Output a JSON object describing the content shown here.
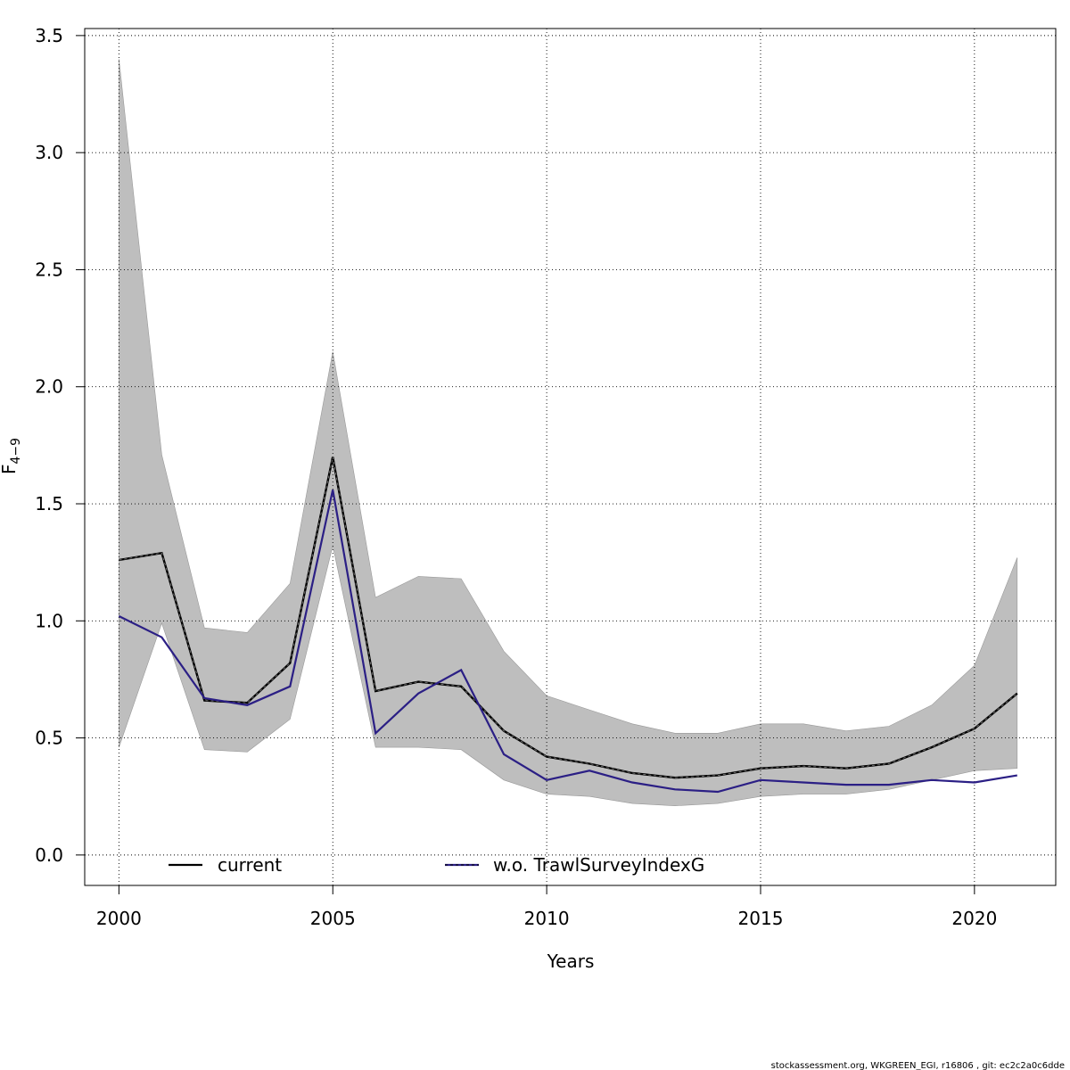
{
  "chart_data": {
    "type": "line",
    "title": "",
    "xlabel": "Years",
    "ylabel_main": "F",
    "ylabel_sub": "4−9",
    "xlim": [
      1999.2,
      2021.9
    ],
    "ylim": [
      -0.13,
      3.53
    ],
    "x_ticks": [
      2000,
      2005,
      2010,
      2015,
      2020
    ],
    "y_ticks": [
      0.0,
      0.5,
      1.0,
      1.5,
      2.0,
      2.5,
      3.0,
      3.5
    ],
    "x_tick_labels": [
      "2000",
      "2005",
      "2010",
      "2015",
      "2020"
    ],
    "y_tick_labels": [
      "0.0",
      "0.5",
      "1.0",
      "1.5",
      "2.0",
      "2.5",
      "3.0",
      "3.5"
    ],
    "grid": true,
    "years": [
      2000,
      2001,
      2002,
      2003,
      2004,
      2005,
      2006,
      2007,
      2008,
      2009,
      2010,
      2011,
      2012,
      2013,
      2014,
      2015,
      2016,
      2017,
      2018,
      2019,
      2020,
      2021
    ],
    "confidence_band": {
      "name": "current CI",
      "color": "#bebebe",
      "upper": [
        3.4,
        1.71,
        0.97,
        0.95,
        1.16,
        2.15,
        1.1,
        1.19,
        1.18,
        0.87,
        0.68,
        0.62,
        0.56,
        0.52,
        0.52,
        0.56,
        0.56,
        0.53,
        0.55,
        0.64,
        0.81,
        1.27
      ],
      "lower": [
        0.46,
        0.99,
        0.45,
        0.44,
        0.58,
        1.32,
        0.46,
        0.46,
        0.45,
        0.32,
        0.26,
        0.25,
        0.22,
        0.21,
        0.22,
        0.25,
        0.26,
        0.26,
        0.28,
        0.32,
        0.36,
        0.37
      ]
    },
    "series": [
      {
        "name": "current",
        "color": "#000000",
        "values": [
          1.26,
          1.29,
          0.66,
          0.65,
          0.82,
          1.7,
          0.7,
          0.74,
          0.72,
          0.53,
          0.42,
          0.39,
          0.35,
          0.33,
          0.34,
          0.37,
          0.38,
          0.37,
          0.39,
          0.46,
          0.54,
          0.69
        ]
      },
      {
        "name": "w.o. TrawlSurveyIndexG",
        "color": "#2b1f85",
        "values": [
          1.02,
          0.93,
          0.67,
          0.64,
          0.72,
          1.56,
          0.52,
          0.69,
          0.79,
          0.43,
          0.32,
          0.36,
          0.31,
          0.28,
          0.27,
          0.32,
          0.31,
          0.3,
          0.3,
          0.32,
          0.31,
          0.34
        ]
      }
    ],
    "legend": {
      "position": "bottom",
      "entries": [
        "current",
        "w.o. TrawlSurveyIndexG"
      ]
    }
  },
  "footer": "stockassessment.org, WKGREEN_EGI, r16806 , git: ec2c2a0c6dde"
}
